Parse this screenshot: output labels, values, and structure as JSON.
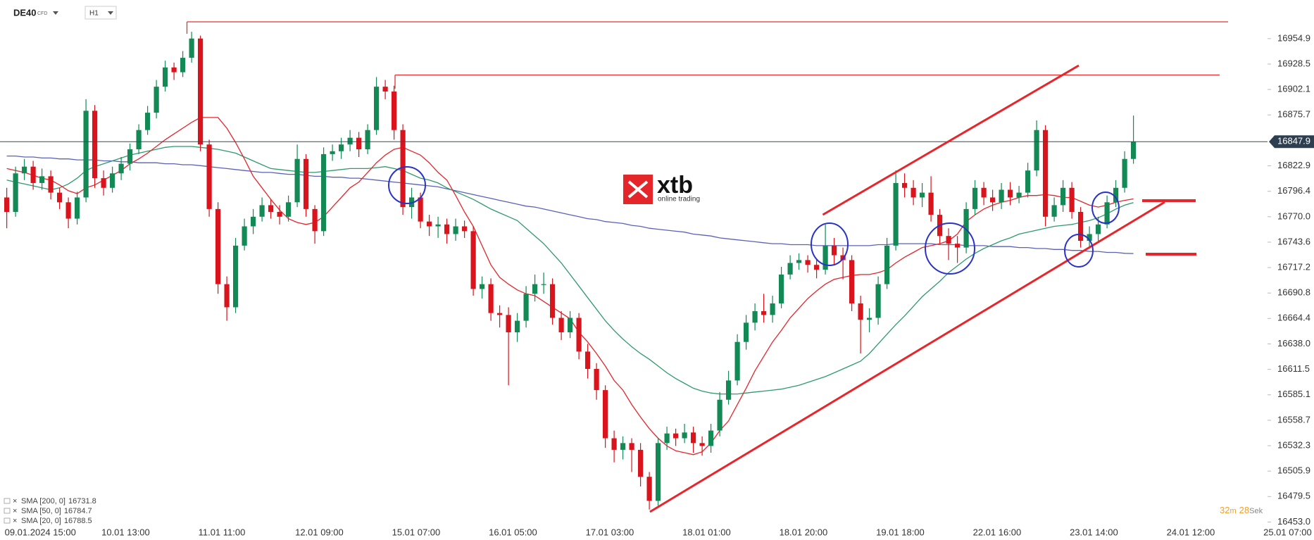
{
  "header": {
    "symbol": "DE40",
    "instrument_type": "CFD",
    "timeframe": "H1"
  },
  "logo": {
    "brand": "xtb",
    "tagline": "online trading"
  },
  "timer": {
    "minutes": "32",
    "minutes_unit": "m",
    "seconds": "28",
    "seconds_unit": "Sek"
  },
  "chart_data": {
    "type": "candlestick",
    "categories": [
      "09.01.2024 15:00",
      null,
      null,
      null,
      null,
      null,
      null,
      null,
      null,
      null,
      null,
      "10.01 13:00",
      null,
      null,
      null,
      null,
      null,
      null,
      null,
      null,
      null,
      null,
      "11.01 11:00",
      null,
      null,
      null,
      null,
      null,
      null,
      null,
      null,
      null,
      null,
      "12.01 09:00",
      null,
      null,
      null,
      null,
      null,
      null,
      null,
      null,
      null,
      null,
      "15.01 07:00",
      null,
      null,
      null,
      null,
      null,
      null,
      null,
      null,
      null,
      null,
      "16.01 05:00",
      null,
      null,
      null,
      null,
      null,
      null,
      null,
      null,
      null,
      null,
      "17.01 03:00",
      null,
      null,
      null,
      null,
      null,
      null,
      null,
      null,
      null,
      null,
      "18.01 01:00",
      null,
      null,
      null,
      null,
      null,
      null,
      null,
      null,
      null,
      null,
      "18.01 20:00",
      null,
      null,
      null,
      null,
      null,
      null,
      null,
      null,
      null,
      null,
      "19.01 18:00",
      null,
      null,
      null,
      null,
      null,
      null,
      null,
      null,
      null,
      null,
      "22.01 16:00",
      null,
      null,
      null,
      null,
      null,
      null,
      null,
      null,
      null,
      null,
      "23.01 14:00",
      null,
      null,
      null,
      null,
      null,
      null,
      null,
      null,
      null,
      null,
      "24.01 12:00",
      null,
      null,
      null,
      null,
      null,
      null,
      null,
      null,
      null,
      null,
      "25.01 07:00"
    ],
    "open": [
      16790,
      16775,
      16815,
      16822,
      16805,
      16812,
      16795,
      16785,
      16768,
      16790,
      16880,
      16810,
      16800,
      16815,
      16825,
      16840,
      16860,
      16878,
      16905,
      16925,
      16920,
      16935,
      16955,
      16845,
      16778,
      16700,
      16676,
      16740,
      16760,
      16770,
      16782,
      16775,
      16770,
      16785,
      16830,
      16778,
      16755,
      16835,
      16838,
      16845,
      16852,
      16840,
      16860,
      16905,
      16900,
      16860,
      16780,
      16790,
      16765,
      16760,
      16762,
      16752,
      16760,
      16755,
      16695,
      16700,
      16670,
      16668,
      16650,
      16662,
      16690,
      16700,
      16700,
      16665,
      16650,
      16665,
      16630,
      16612,
      16590,
      16540,
      16528,
      16535,
      16528,
      16500,
      16475,
      16535,
      16545,
      16540,
      16546,
      16535,
      16532,
      16548,
      16580,
      16600,
      16640,
      16660,
      16672,
      16668,
      16680,
      16710,
      16722,
      16725,
      16720,
      16715,
      16740,
      16730,
      16725,
      16680,
      16663,
      16665,
      16700,
      16740,
      16805,
      16800,
      16790,
      16795,
      16772,
      16750,
      16742,
      16738,
      16778,
      16800,
      16790,
      16785,
      16798,
      16790,
      16795,
      16818,
      16860,
      16770,
      16782,
      16800,
      16775,
      16745,
      16752,
      16762,
      16785,
      16800,
      16830,
      null,
      null,
      null,
      null,
      null,
      null,
      null,
      null,
      null,
      null,
      null,
      null,
      null,
      null,
      null
    ],
    "high": [
      16800,
      16822,
      16830,
      16828,
      16820,
      16818,
      16800,
      16790,
      16796,
      16892,
      16886,
      16818,
      16822,
      16832,
      16846,
      16866,
      16885,
      16912,
      16932,
      16930,
      16942,
      16962,
      16958,
      16850,
      16785,
      16708,
      16748,
      16768,
      16778,
      16790,
      16788,
      16782,
      16792,
      16845,
      16835,
      16782,
      16842,
      16845,
      16852,
      16860,
      16858,
      16866,
      16915,
      16912,
      16906,
      16866,
      16800,
      16795,
      16772,
      16770,
      16768,
      16768,
      16766,
      16760,
      16708,
      16706,
      16678,
      16676,
      16670,
      16698,
      16710,
      16712,
      16706,
      16672,
      16672,
      16670,
      16638,
      16618,
      16595,
      16548,
      16542,
      16540,
      16535,
      16505,
      16540,
      16552,
      16550,
      16555,
      16552,
      16542,
      16555,
      16588,
      16610,
      16648,
      16668,
      16680,
      16690,
      16688,
      16718,
      16730,
      16732,
      16730,
      16725,
      16762,
      16748,
      16738,
      16730,
      16688,
      16675,
      16708,
      16748,
      16818,
      16815,
      16808,
      16805,
      16812,
      16778,
      16758,
      16750,
      16785,
      16808,
      16806,
      16798,
      16805,
      16806,
      16802,
      16826,
      16870,
      16865,
      16790,
      16808,
      16806,
      16780,
      16760,
      16770,
      16792,
      16808,
      16838,
      16875,
      null,
      null,
      null,
      null,
      null,
      null,
      null,
      null,
      null,
      null,
      null,
      null,
      null,
      null,
      null
    ],
    "low": [
      16758,
      16770,
      16808,
      16798,
      16798,
      16788,
      16778,
      16758,
      16762,
      16785,
      16800,
      16792,
      16795,
      16808,
      16818,
      16835,
      16855,
      16872,
      16900,
      16912,
      16915,
      16930,
      16838,
      16770,
      16690,
      16662,
      16670,
      16735,
      16752,
      16765,
      16768,
      16762,
      16765,
      16780,
      16770,
      16742,
      16750,
      16828,
      16830,
      16838,
      16832,
      16835,
      16855,
      16892,
      16850,
      16772,
      16768,
      16758,
      16750,
      16748,
      16742,
      16745,
      16748,
      16688,
      16685,
      16662,
      16655,
      16595,
      16640,
      16655,
      16682,
      16690,
      16658,
      16642,
      16644,
      16622,
      16602,
      16580,
      16530,
      16515,
      16518,
      16505,
      16490,
      16466,
      16470,
      16528,
      16532,
      16535,
      16525,
      16522,
      16525,
      16542,
      16575,
      16595,
      16632,
      16652,
      16660,
      16660,
      16675,
      16705,
      16715,
      16712,
      16706,
      16710,
      16720,
      16705,
      16672,
      16628,
      16650,
      16658,
      16695,
      16735,
      16790,
      16782,
      16780,
      16765,
      16742,
      16725,
      16722,
      16732,
      16772,
      16782,
      16776,
      16778,
      16782,
      16784,
      16790,
      16812,
      16760,
      16765,
      16775,
      16768,
      16738,
      16738,
      16745,
      16758,
      16780,
      16795,
      16825,
      null,
      null,
      null,
      null,
      null,
      null,
      null,
      null,
      null,
      null,
      null,
      null,
      null,
      null,
      null
    ],
    "close": [
      16775,
      16815,
      16822,
      16805,
      16812,
      16795,
      16785,
      16768,
      16790,
      16880,
      16810,
      16800,
      16815,
      16825,
      16840,
      16860,
      16878,
      16905,
      16925,
      16920,
      16935,
      16955,
      16845,
      16778,
      16700,
      16676,
      16740,
      16760,
      16770,
      16782,
      16775,
      16770,
      16785,
      16830,
      16778,
      16755,
      16835,
      16838,
      16845,
      16852,
      16840,
      16860,
      16905,
      16900,
      16860,
      16780,
      16790,
      16765,
      16760,
      16762,
      16752,
      16760,
      16755,
      16695,
      16700,
      16670,
      16668,
      16650,
      16662,
      16690,
      16700,
      16700,
      16665,
      16650,
      16665,
      16630,
      16612,
      16590,
      16540,
      16528,
      16535,
      16528,
      16500,
      16475,
      16535,
      16545,
      16540,
      16546,
      16535,
      16532,
      16548,
      16580,
      16600,
      16640,
      16660,
      16672,
      16668,
      16680,
      16710,
      16722,
      16725,
      16720,
      16715,
      16740,
      16730,
      16725,
      16680,
      16663,
      16665,
      16700,
      16740,
      16805,
      16800,
      16790,
      16795,
      16772,
      16750,
      16742,
      16738,
      16778,
      16800,
      16790,
      16785,
      16798,
      16790,
      16795,
      16818,
      16860,
      16770,
      16782,
      16800,
      16775,
      16745,
      16752,
      16762,
      16785,
      16800,
      16830,
      16847.9,
      null,
      null,
      null,
      null,
      null,
      null,
      null,
      null,
      null,
      null,
      null,
      null,
      null,
      null,
      null
    ],
    "up_color": "#138a55",
    "down_color": "#d9141c",
    "series": [
      {
        "name": "SMA [200, 0]",
        "color": "#5a62b8",
        "values": [
          16833,
          16833,
          16832,
          16832,
          16831,
          16831,
          16830,
          16830,
          16829,
          16829,
          16829,
          16828,
          16828,
          16827,
          16827,
          16826,
          16826,
          16826,
          16825,
          16825,
          16824,
          16824,
          16823,
          16822,
          16821,
          16820,
          16819,
          16818,
          16817,
          16816,
          16816,
          16815,
          16814,
          16814,
          16813,
          16812,
          16812,
          16811,
          16811,
          16810,
          16810,
          16809,
          16808,
          16807,
          16806,
          16805,
          16804,
          16803,
          16802,
          16801,
          16799,
          16797,
          16795,
          16793,
          16791,
          16789,
          16787,
          16785,
          16783,
          16781,
          16780,
          16778,
          16776,
          16774,
          16772,
          16770,
          16768,
          16767,
          16765,
          16764,
          16763,
          16761,
          16760,
          16758,
          16757,
          16756,
          16755,
          16754,
          16752,
          16751,
          16750,
          16748,
          16747,
          16746,
          16745,
          16744,
          16743,
          16742,
          16742,
          16741,
          16741,
          16741,
          16740,
          16740,
          16740,
          16740,
          16740,
          16740,
          16740,
          16741,
          16741,
          16742,
          16742,
          16742,
          16742,
          16742,
          16741,
          16741,
          16741,
          16740,
          16740,
          16740,
          16739,
          16739,
          16739,
          16738,
          16738,
          16737,
          16737,
          16736,
          16736,
          16735,
          16735,
          16734,
          16734,
          16733,
          16733,
          16732,
          16731.8,
          null,
          null,
          null,
          null,
          null,
          null,
          null,
          null,
          null,
          null,
          null,
          null,
          null,
          null,
          null
        ]
      },
      {
        "name": "SMA [50, 0]",
        "color": "#2f9a6d",
        "values": [
          16808,
          16806,
          16804,
          16802,
          16800,
          16798,
          16800,
          16804,
          16810,
          16818,
          16822,
          16825,
          16828,
          16831,
          16834,
          16836,
          16838,
          16840,
          16842,
          16843,
          16843,
          16843,
          16842,
          16841,
          16840,
          16838,
          16836,
          16832,
          16828,
          16824,
          16820,
          16819,
          16818,
          16817,
          16816,
          16816,
          16817,
          16818,
          16819,
          16820,
          16820,
          16820,
          16821,
          16822,
          16820,
          16818,
          16814,
          16810,
          16808,
          16805,
          16800,
          16796,
          16792,
          16788,
          16783,
          16778,
          16774,
          16770,
          16766,
          16758,
          16750,
          16742,
          16732,
          16722,
          16710,
          16698,
          16686,
          16674,
          16662,
          16652,
          16643,
          16635,
          16628,
          16622,
          16615,
          16608,
          16602,
          16597,
          16592,
          16589,
          16587,
          16586,
          16586,
          16586,
          16587,
          16588,
          16589,
          16590,
          16591,
          16593,
          16595,
          16598,
          16601,
          16604,
          16608,
          16612,
          16616,
          16620,
          16628,
          16638,
          16648,
          16658,
          16667,
          16677,
          16687,
          16695,
          16703,
          16712,
          16719,
          16726,
          16732,
          16737,
          16741,
          16745,
          16748,
          16752,
          16754,
          16756,
          16758,
          16760,
          16761,
          16762,
          16764,
          16766,
          16769,
          16773,
          16778,
          16782,
          16784.7,
          null,
          null,
          null,
          null,
          null,
          null,
          null,
          null,
          null,
          null,
          null,
          null,
          null,
          null,
          null
        ]
      },
      {
        "name": "SMA [20, 0]",
        "color": "#e3262c",
        "values": [
          16820,
          16818,
          16816,
          16813,
          16810,
          16808,
          16803,
          16797,
          16794,
          16800,
          16803,
          16808,
          16813,
          16818,
          16825,
          16830,
          16836,
          16843,
          16850,
          16856,
          16862,
          16868,
          16873,
          16873,
          16873,
          16862,
          16847,
          16830,
          16812,
          16800,
          16788,
          16777,
          16768,
          16764,
          16762,
          16764,
          16770,
          16780,
          16790,
          16800,
          16806,
          16816,
          16826,
          16834,
          16840,
          16842,
          16838,
          16834,
          16826,
          16816,
          16808,
          16792,
          16775,
          16760,
          16740,
          16720,
          16707,
          16700,
          16694,
          16690,
          16688,
          16682,
          16676,
          16670,
          16664,
          16650,
          16640,
          16628,
          16615,
          16600,
          16590,
          16575,
          16562,
          16550,
          16540,
          16532,
          16527,
          16525,
          16523,
          16526,
          16535,
          16548,
          16558,
          16575,
          16592,
          16610,
          16625,
          16640,
          16652,
          16665,
          16675,
          16685,
          16693,
          16700,
          16705,
          16707,
          16709,
          16710,
          16710,
          16712,
          16715,
          16722,
          16728,
          16733,
          16738,
          16740,
          16742,
          16745,
          16752,
          16765,
          16772,
          16778,
          16782,
          16785,
          16787,
          16790,
          16792,
          16792,
          16793,
          16792,
          16790,
          16790,
          16786,
          16782,
          16780,
          16782,
          16785,
          16787,
          16788.5,
          null,
          null,
          null,
          null,
          null,
          null,
          null,
          null,
          null,
          null,
          null,
          null,
          null,
          null,
          null
        ]
      }
    ],
    "ylim": [
      16449,
      16995
    ],
    "yticks": [
      16954.9,
      16928.5,
      16902.1,
      16875.7,
      16822.9,
      16796.4,
      {
        "value": 16770,
        "label": "16770.0"
      },
      16743.6,
      16717.2,
      16690.8,
      16664.4,
      {
        "value": 16638,
        "label": "16638.0"
      },
      16611.5,
      16585.1,
      16558.7,
      16532.3,
      16505.9,
      16479.5,
      {
        "value": 16453,
        "label": "16453.0"
      }
    ]
  }
}
